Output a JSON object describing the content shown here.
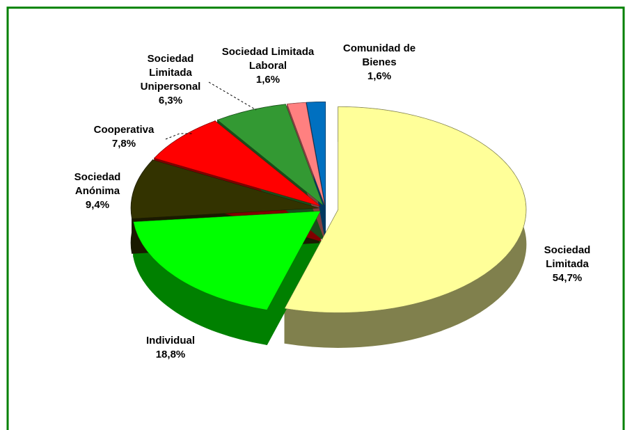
{
  "chart_data": {
    "type": "pie",
    "categories": [
      "Sociedad Limitada",
      "Individual",
      "Sociedad Anónima",
      "Cooperativa",
      "Sociedad Limitada Unipersonal",
      "Sociedad Limitada Laboral",
      "Comunidad de Bienes"
    ],
    "values": [
      54.7,
      18.8,
      9.4,
      7.8,
      6.3,
      1.6,
      1.6
    ],
    "value_labels": [
      "54,7%",
      "18,8%",
      "9,4%",
      "7,8%",
      "6,3%",
      "1,6%",
      "1,6%"
    ],
    "colors": [
      "#ffff99",
      "#00ff00",
      "#333300",
      "#ff0000",
      "#339933",
      "#ff8080",
      "#0070c0"
    ]
  }
}
